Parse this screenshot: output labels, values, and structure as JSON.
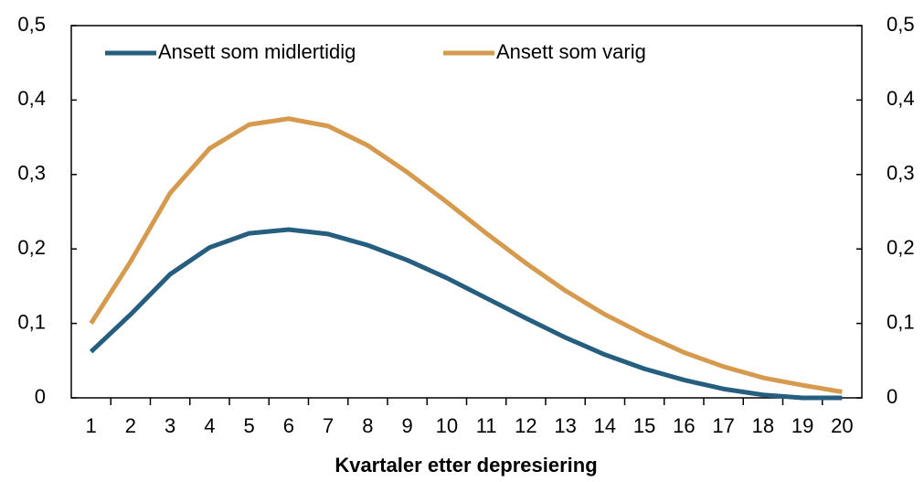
{
  "chart_data": {
    "type": "line",
    "xlabel": "Kvartaler etter depresiering",
    "categories": [
      "1",
      "2",
      "3",
      "4",
      "5",
      "6",
      "7",
      "8",
      "9",
      "10",
      "11",
      "12",
      "13",
      "14",
      "15",
      "16",
      "17",
      "18",
      "19",
      "20"
    ],
    "series": [
      {
        "name": "Ansett som midlertidig",
        "color": "#255e7e",
        "values": [
          0.062,
          0.112,
          0.166,
          0.202,
          0.221,
          0.226,
          0.22,
          0.205,
          0.185,
          0.161,
          0.134,
          0.107,
          0.081,
          0.058,
          0.039,
          0.024,
          0.012,
          0.004,
          0.0,
          0.0
        ]
      },
      {
        "name": "Ansett som varig",
        "color": "#d69a4e",
        "values": [
          0.1,
          0.183,
          0.275,
          0.335,
          0.367,
          0.375,
          0.365,
          0.339,
          0.303,
          0.263,
          0.221,
          0.181,
          0.144,
          0.112,
          0.085,
          0.061,
          0.042,
          0.027,
          0.017,
          0.008
        ]
      }
    ],
    "ylim": [
      0,
      0.5
    ],
    "yticks": [
      0,
      {
        "value": 0.1,
        "label": "0,1"
      },
      {
        "value": 0.2,
        "label": "0,2"
      },
      {
        "value": 0.3,
        "label": "0,3"
      },
      {
        "value": 0.4,
        "label": "0,4"
      },
      {
        "value": 0.5,
        "label": "0,5"
      }
    ],
    "y2lim": [
      0,
      0.5
    ],
    "y2ticks": [
      0,
      {
        "value": 0.1,
        "label": "0,1"
      },
      {
        "value": 0.2,
        "label": "0,2"
      },
      {
        "value": 0.3,
        "label": "0,3"
      },
      {
        "value": 0.4,
        "label": "0,4"
      },
      {
        "value": 0.5,
        "label": "0,5"
      }
    ],
    "legend": "upper left"
  }
}
